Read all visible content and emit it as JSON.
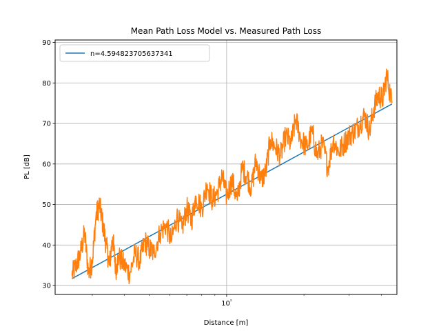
{
  "chart_data": {
    "type": "line",
    "title": "Mean Path Loss Model vs. Measured Path Loss",
    "xlabel": "Distance [m]",
    "ylabel": "PL [dB]",
    "x_scale": "log",
    "xlim": [
      21.5,
      460
    ],
    "ylim": [
      27.8,
      90.6
    ],
    "grid": true,
    "legend_placement": "top-left",
    "y_ticks": [
      30,
      40,
      50,
      60,
      70,
      80,
      90
    ],
    "x_major_ticks": [
      100
    ],
    "x_major_tick_labels": [
      "10²"
    ],
    "x_minor_ticks": [
      30,
      40,
      50,
      60,
      70,
      80,
      90,
      200,
      300,
      400
    ],
    "colors": {
      "model": "#1f77b4",
      "measured": "#ff7f0e"
    },
    "series": [
      {
        "name": "n=4.594823705637341",
        "x": [
          25,
          440
        ],
        "y": [
          31.7,
          74.8
        ]
      },
      {
        "x": [
          25,
          26,
          27,
          28,
          29,
          30,
          31,
          32,
          33,
          34,
          35,
          36,
          37,
          38,
          40,
          42,
          44,
          46,
          48,
          50,
          52,
          55,
          58,
          61,
          64,
          67,
          70,
          73,
          76,
          80,
          84,
          88,
          92,
          96,
          100,
          105,
          110,
          115,
          120,
          125,
          130,
          136,
          142,
          148,
          155,
          162,
          170,
          178,
          186,
          195,
          205,
          215,
          225,
          236,
          248,
          260,
          273,
          286,
          300,
          315,
          330,
          345,
          360,
          375,
          390,
          405,
          420,
          440
        ],
        "y": [
          32.5,
          35,
          38,
          43,
          33,
          36,
          47,
          50,
          45,
          40,
          35,
          42,
          34,
          37,
          35,
          33,
          38,
          36,
          41,
          39,
          38,
          43,
          45,
          41,
          47,
          44,
          49,
          46,
          52,
          49,
          55,
          51,
          53,
          57,
          52,
          56,
          51,
          59,
          57,
          54,
          61,
          56,
          58,
          66,
          64,
          62,
          67,
          65,
          71,
          66,
          64,
          68,
          62,
          65,
          59,
          66,
          63,
          65,
          67,
          68,
          70,
          72,
          68,
          74,
          77,
          76,
          82,
          75
        ]
      }
    ]
  }
}
